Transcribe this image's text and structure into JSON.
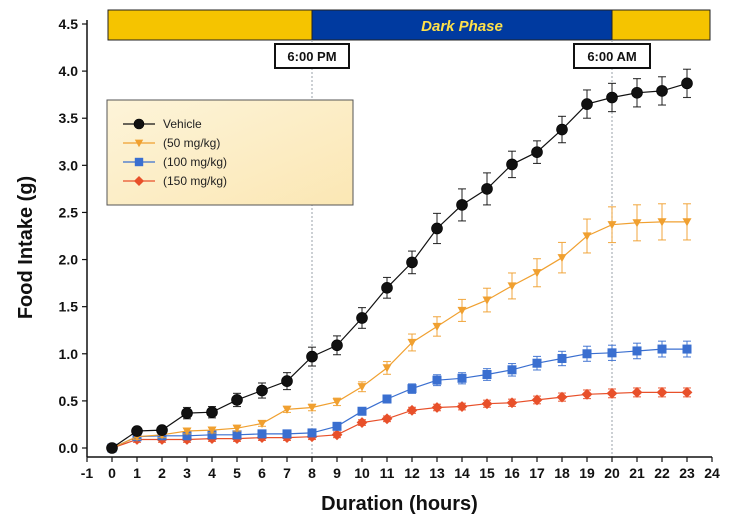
{
  "chart_data": {
    "type": "line",
    "xlabel": "Duration (hours)",
    "ylabel": "Food Intake (g)",
    "xlim": [
      -1,
      24
    ],
    "ylim": [
      -0.05,
      4.5
    ],
    "x_ticks": [
      -1,
      0,
      1,
      2,
      3,
      4,
      5,
      6,
      7,
      8,
      9,
      10,
      11,
      12,
      13,
      14,
      15,
      16,
      17,
      18,
      19,
      20,
      21,
      22,
      23,
      24
    ],
    "y_ticks": [
      "0.0",
      "0.5",
      "1.0",
      "1.5",
      "2.0",
      "2.5",
      "3.0",
      "3.5",
      "4.0",
      "4.5"
    ],
    "grid": false,
    "legend_position": "upper-left",
    "dark_phase": {
      "label": "Dark Phase",
      "start": 8,
      "end": 20,
      "start_label": "6:00 PM",
      "end_label": "6:00 AM",
      "light_color": "#f5c400",
      "dark_color": "#003aa0"
    },
    "x": [
      0,
      1,
      2,
      3,
      4,
      5,
      6,
      7,
      8,
      9,
      10,
      11,
      12,
      13,
      14,
      15,
      16,
      17,
      18,
      19,
      20,
      21,
      22,
      23
    ],
    "series": [
      {
        "name": "Vehicle",
        "color": "#111111",
        "marker": "circle",
        "values": [
          0.0,
          0.18,
          0.19,
          0.37,
          0.38,
          0.51,
          0.61,
          0.71,
          0.97,
          1.09,
          1.38,
          1.7,
          1.97,
          2.33,
          2.58,
          2.75,
          3.01,
          3.14,
          3.38,
          3.65,
          3.72,
          3.77,
          3.79,
          3.87
        ],
        "errors": [
          0.03,
          0.04,
          0.04,
          0.06,
          0.06,
          0.07,
          0.08,
          0.09,
          0.1,
          0.1,
          0.11,
          0.11,
          0.12,
          0.16,
          0.17,
          0.17,
          0.14,
          0.12,
          0.14,
          0.15,
          0.15,
          0.15,
          0.15,
          0.15
        ]
      },
      {
        "name": "(50 mg/kg)",
        "color": "#f0a030",
        "marker": "triangle-down",
        "values": [
          0.0,
          0.12,
          0.14,
          0.18,
          0.19,
          0.21,
          0.26,
          0.41,
          0.43,
          0.49,
          0.65,
          0.85,
          1.12,
          1.29,
          1.46,
          1.57,
          1.72,
          1.86,
          2.02,
          2.25,
          2.37,
          2.39,
          2.4,
          2.4
        ]
      },
      {
        "name": "(100 mg/kg)",
        "color": "#3a6fd0",
        "marker": "square",
        "values": [
          0.0,
          0.12,
          0.13,
          0.13,
          0.14,
          0.14,
          0.15,
          0.15,
          0.16,
          0.23,
          0.39,
          0.52,
          0.63,
          0.72,
          0.74,
          0.78,
          0.83,
          0.9,
          0.95,
          1.0,
          1.01,
          1.03,
          1.05,
          1.05
        ]
      },
      {
        "name": "(150 mg/kg)",
        "color": "#e8502a",
        "marker": "diamond",
        "values": [
          0.0,
          0.09,
          0.09,
          0.09,
          0.1,
          0.1,
          0.11,
          0.11,
          0.12,
          0.14,
          0.27,
          0.31,
          0.4,
          0.43,
          0.44,
          0.47,
          0.48,
          0.51,
          0.54,
          0.57,
          0.58,
          0.59,
          0.59,
          0.59
        ]
      }
    ]
  }
}
